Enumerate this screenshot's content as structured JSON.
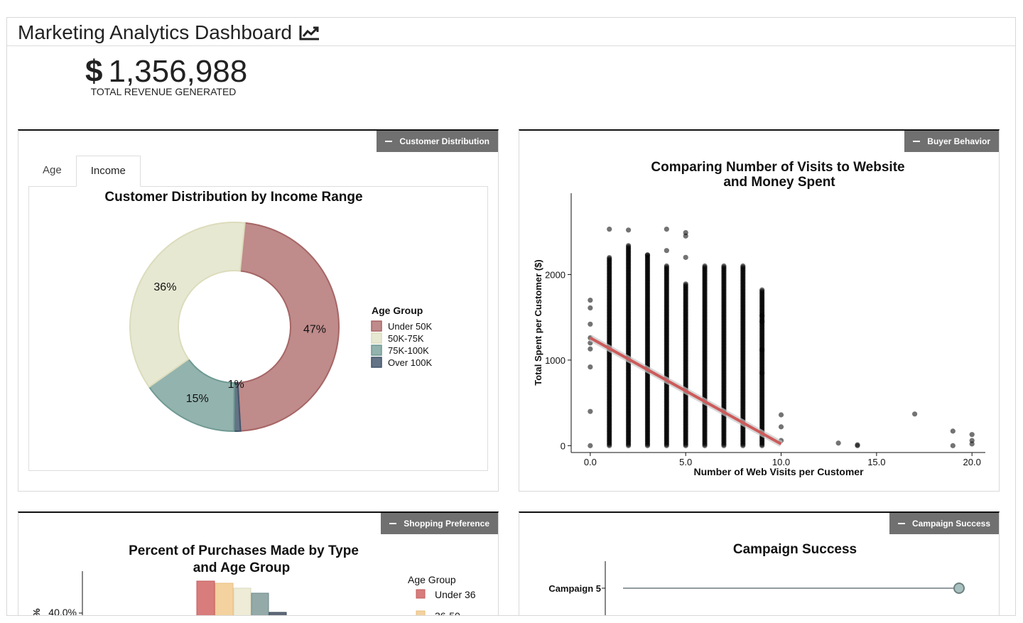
{
  "header": {
    "title": "Marketing Analytics Dashboard",
    "title_icon": "line-chart-icon"
  },
  "kpi": {
    "symbol": "$",
    "value": "1,356,988",
    "label": "TOTAL REVENUE GENERATED"
  },
  "boxes": {
    "customer": {
      "tag": "Customer Distribution",
      "tabs": [
        "Age",
        "Income"
      ],
      "active_tab": "Income"
    },
    "buyer": {
      "tag": "Buyer Behavior"
    },
    "shopping": {
      "tag": "Shopping Preference"
    },
    "campaign": {
      "tag": "Campaign Success"
    }
  },
  "colors": {
    "under50": "#bf8b8b",
    "k50_75": "#e7e8d2",
    "k75_100": "#93b3ae",
    "over100": "#627485",
    "regression": "#cd5a5a"
  },
  "chart_data": [
    {
      "type": "pie",
      "title": "Customer Distribution by Income Range",
      "legend_title": "Age Group",
      "legend_position": "right",
      "slices": [
        {
          "label": "Under 50K",
          "value": 47,
          "text": "47%"
        },
        {
          "label": "50K-75K",
          "value": 36,
          "text": "36%"
        },
        {
          "label": "75K-100K",
          "value": 15,
          "text": "15%"
        },
        {
          "label": "Over 100K",
          "value": 1,
          "text": "1%"
        }
      ]
    },
    {
      "type": "scatter",
      "title": "Comparing Number of Visits to Website and Money Spent",
      "title_lines": [
        "Comparing Number of Visits to Website",
        "and Money Spent"
      ],
      "xlabel": "Number of Web Visits per Customer",
      "ylabel": "Total Spent per Customer ($)",
      "xlim": [
        -1,
        20.7
      ],
      "ylim": [
        -80,
        2950
      ],
      "xticks": [
        "0.0",
        "5.0",
        "10.0",
        "15.0",
        "20.0"
      ],
      "yticks": [
        "0",
        "1000",
        "2000"
      ],
      "columns": [
        {
          "x": 0,
          "max": 1700
        },
        {
          "x": 1,
          "max": 2200
        },
        {
          "x": 2,
          "max": 2350
        },
        {
          "x": 3,
          "max": 2230
        },
        {
          "x": 4,
          "max": 2100
        },
        {
          "x": 5,
          "max": 1900
        },
        {
          "x": 6,
          "max": 2100
        },
        {
          "x": 7,
          "max": 2100
        },
        {
          "x": 8,
          "max": 2100
        },
        {
          "x": 9,
          "max": 1820
        }
      ],
      "points": [
        [
          0,
          0
        ],
        [
          0,
          400
        ],
        [
          0,
          920
        ],
        [
          0,
          1130
        ],
        [
          0,
          1200
        ],
        [
          0,
          1260
        ],
        [
          0,
          1420
        ],
        [
          0,
          1610
        ],
        [
          0,
          1700
        ],
        [
          1,
          2530
        ],
        [
          2,
          2520
        ],
        [
          4,
          2530
        ],
        [
          5,
          2490
        ],
        [
          5,
          2450
        ],
        [
          5,
          2200
        ],
        [
          4,
          2280
        ],
        [
          3,
          2230
        ],
        [
          10,
          360
        ],
        [
          10,
          220
        ],
        [
          10,
          60
        ],
        [
          13,
          30
        ],
        [
          14,
          10
        ],
        [
          14,
          0
        ],
        [
          17,
          370
        ],
        [
          19,
          170
        ],
        [
          19,
          0
        ],
        [
          20,
          130
        ],
        [
          20,
          60
        ],
        [
          20,
          20
        ],
        [
          9,
          1450
        ],
        [
          9,
          1120
        ],
        [
          9,
          850
        ],
        [
          9,
          1520
        ]
      ],
      "trend": {
        "x": [
          0,
          10
        ],
        "y": [
          1260,
          20
        ]
      }
    },
    {
      "type": "bar",
      "title": "Percent of Purchases Made by Type and Age Group",
      "title_lines": [
        "Percent of Purchases Made by Type",
        "and Age Group"
      ],
      "legend_title": "Age Group",
      "legend": [
        "Under 36",
        "36-50"
      ],
      "yticks": [
        "40.0%"
      ]
    },
    {
      "type": "scatter",
      "title": "Campaign Success",
      "categories": [
        "Campaign 5"
      ]
    }
  ]
}
